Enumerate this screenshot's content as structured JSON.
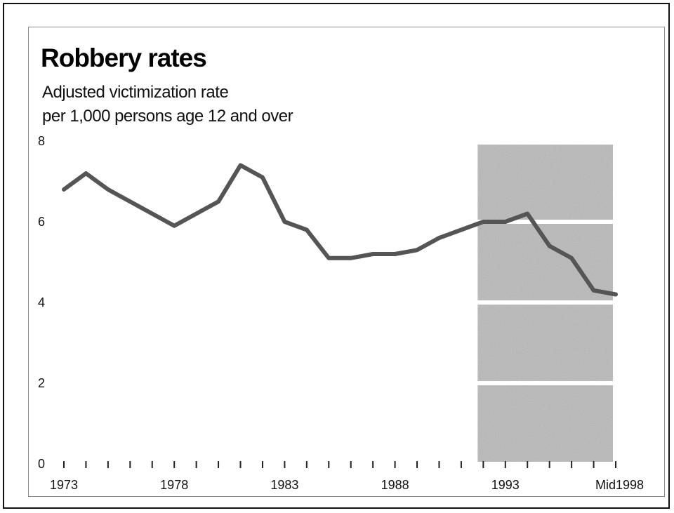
{
  "chart_data": {
    "type": "line",
    "title": "Robbery rates",
    "subtitle": [
      "Adjusted victimization rate",
      "per 1,000 persons age 12 and over"
    ],
    "xlabel": "",
    "ylabel": "",
    "ylim": [
      0,
      8
    ],
    "yticks": [
      0,
      2,
      4,
      6,
      8
    ],
    "xlim": [
      1973,
      1998
    ],
    "xticks": [
      1973,
      1974,
      1975,
      1976,
      1977,
      1978,
      1979,
      1980,
      1981,
      1982,
      1983,
      1984,
      1985,
      1986,
      1987,
      1988,
      1989,
      1990,
      1991,
      1992,
      1993,
      1994,
      1995,
      1996,
      1997,
      1998
    ],
    "xtick_labels": [
      {
        "x": 1973,
        "label": "1973"
      },
      {
        "x": 1978,
        "label": "1978"
      },
      {
        "x": 1983,
        "label": "1983"
      },
      {
        "x": 1988,
        "label": "1988"
      },
      {
        "x": 1993,
        "label": "1993"
      },
      {
        "x": 1998,
        "label": "Mid1998"
      }
    ],
    "shaded_region": {
      "x_start": 1992,
      "x_end": 1998
    },
    "grid": false,
    "legend": "none",
    "series": [
      {
        "x": [
          1973,
          1974,
          1975,
          1976,
          1977,
          1978,
          1979,
          1980,
          1981,
          1982,
          1983,
          1984,
          1985,
          1986,
          1987,
          1988,
          1989,
          1990,
          1991,
          1992,
          1993,
          1994,
          1995,
          1996,
          1997,
          1998
        ],
        "values": [
          6.8,
          7.2,
          6.8,
          6.5,
          6.2,
          5.9,
          6.2,
          6.5,
          7.4,
          7.1,
          6.0,
          5.8,
          5.1,
          5.1,
          5.2,
          5.2,
          5.3,
          5.6,
          5.8,
          6.0,
          6.0,
          6.2,
          5.4,
          5.1,
          4.3,
          4.2
        ],
        "color": "#555555"
      }
    ]
  }
}
